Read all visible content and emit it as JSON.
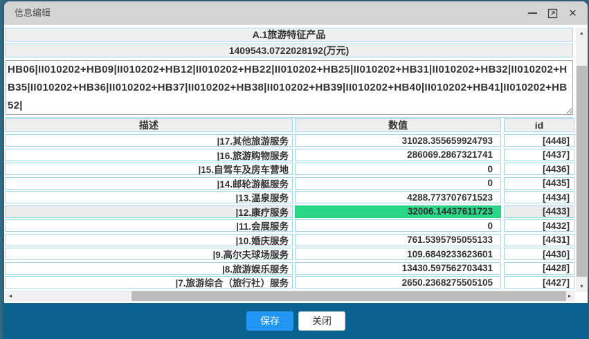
{
  "window": {
    "title": "信息编辑",
    "controls": {
      "minimize_glyph": "—",
      "close_glyph": "✕"
    }
  },
  "header": {
    "section_title": "A.1旅游特征产品",
    "total_value": "1409543.0722028192(万元)"
  },
  "formula_editor": {
    "value": "HB06|II010202+HB09|II010202+HB12|II010202+HB22|II010202+HB25|II010202+HB31|II010202+HB32|II010202+HB35|II010202+HB36|II010202+HB37|II010202+HB38|II010202+HB39|II010202+HB40|II010202+HB41|II010202+HB52|"
  },
  "table": {
    "columns": {
      "desc": "描述",
      "value": "数值",
      "id": "id"
    },
    "rows": [
      {
        "desc": "|17.其他旅游服务",
        "value": "31028.355659924793",
        "id": "[4448]",
        "selected": false
      },
      {
        "desc": "|16.旅游购物服务",
        "value": "286069.2867321741",
        "id": "[4437]",
        "selected": false
      },
      {
        "desc": "|15.自驾车及房车营地",
        "value": "0",
        "id": "[4436]",
        "selected": false
      },
      {
        "desc": "|14.邮轮游艇服务",
        "value": "0",
        "id": "[4435]",
        "selected": false
      },
      {
        "desc": "|13.温泉服务",
        "value": "4288.773707671523",
        "id": "[4434]",
        "selected": false
      },
      {
        "desc": "|12.康疗服务",
        "value": "32006.14437611723",
        "id": "[4433]",
        "selected": true
      },
      {
        "desc": "|11.会展服务",
        "value": "0",
        "id": "[4432]",
        "selected": false
      },
      {
        "desc": "|10.婚庆服务",
        "value": "761.5395795055133",
        "id": "[4431]",
        "selected": false
      },
      {
        "desc": "|9.高尔夫球场服务",
        "value": "109.6849233623601",
        "id": "[4430]",
        "selected": false
      },
      {
        "desc": "|8.旅游娱乐服务",
        "value": "13430.597562703431",
        "id": "[4428]",
        "selected": false
      },
      {
        "desc": "|7.旅游综合（旅行社）服务",
        "value": "2650.2368275505105",
        "id": "[4427]",
        "selected": false
      }
    ]
  },
  "scrollbars": {
    "up_glyph": "▲",
    "down_glyph": "▼",
    "left_glyph": "◄",
    "right_glyph": "►"
  },
  "footer": {
    "save_label": "保存",
    "close_label": "关闭"
  },
  "colors": {
    "border_cyan": "#9ed6ea",
    "highlight_green": "#2bd687",
    "selected_row_gray": "#ececec",
    "footer_blue": "#0a6292",
    "save_button_blue": "#2196f3",
    "titlebar_gray": "#d5d5d5",
    "page_edge": "#336a85"
  }
}
